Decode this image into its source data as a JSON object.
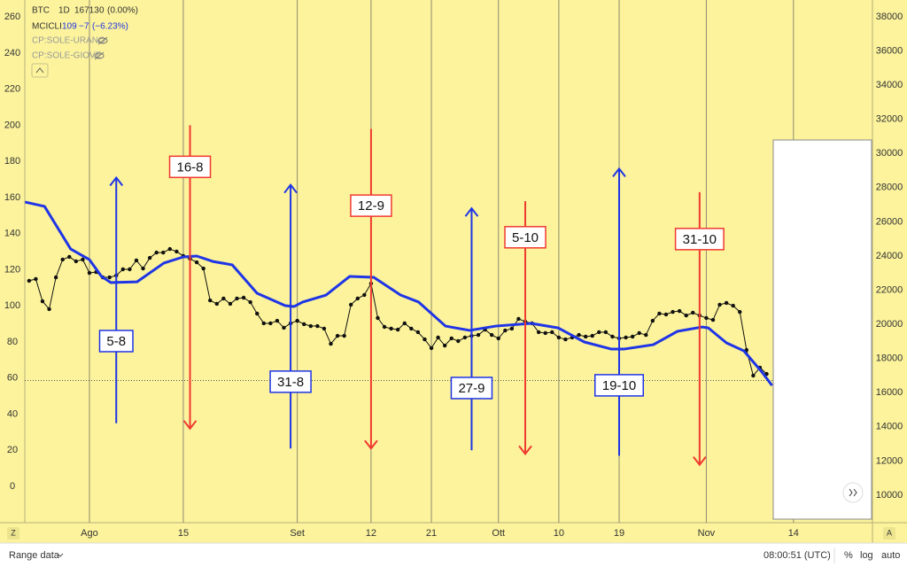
{
  "legend": {
    "interval": "1D",
    "btc_change": "0",
    "btc_pct": "(0.00%)",
    "mc_value": "109",
    "mc_change": "−7",
    "mc_pct": "(−6.23%)",
    "study1": "CP:SOLE-URANO",
    "study2": "CP:SOLE-GIOVE"
  },
  "toolbar": {
    "range": "Range data",
    "time": "08:00:51 (UTC)",
    "percent": "%",
    "log": "log",
    "auto": "auto",
    "left_btn": "Z",
    "right_btn": "A"
  },
  "chart_data": {
    "type": "line",
    "last_price": 16713,
    "xlim": [
      -9.64,
      116.78
    ],
    "xticks": [
      {
        "value": 0,
        "label": "Ago"
      },
      {
        "value": 14,
        "label": "15"
      },
      {
        "value": 31,
        "label": "Set"
      },
      {
        "value": 42,
        "label": "12"
      },
      {
        "value": 51,
        "label": "21"
      },
      {
        "value": 61,
        "label": "Ott"
      },
      {
        "value": 70,
        "label": "10"
      },
      {
        "value": 79,
        "label": "19"
      },
      {
        "value": 92,
        "label": "Nov"
      },
      {
        "value": 105,
        "label": "14"
      }
    ],
    "ylim": [
      -20.1,
      269.4
    ],
    "yticks": [
      0,
      20,
      40,
      60,
      80,
      100,
      120,
      140,
      160,
      180,
      200,
      220,
      240,
      260
    ],
    "y2lim": [
      8393,
      38979
    ],
    "y2ticks": [
      10000,
      12000,
      14000,
      16000,
      18000,
      20000,
      22000,
      24000,
      26000,
      28000,
      30000,
      32000,
      34000,
      36000,
      38000
    ],
    "series": [
      {
        "name": "BTC",
        "color": "#111111",
        "axis": "y2",
        "markers": true,
        "x": [
          -9,
          -8,
          -7,
          -6,
          -5,
          -4,
          -3,
          -2,
          -1,
          0,
          1,
          2,
          3,
          4,
          5,
          6,
          7,
          8,
          9,
          10,
          11,
          12,
          13,
          14,
          15,
          16,
          17,
          18,
          19,
          20,
          21,
          22,
          23,
          24,
          25,
          26,
          27,
          28,
          29,
          30,
          31,
          32,
          33,
          34,
          35,
          36,
          37,
          38,
          39,
          40,
          41,
          42,
          43,
          44,
          45,
          46,
          47,
          48,
          49,
          50,
          51,
          52,
          53,
          54,
          55,
          56,
          57,
          58,
          59,
          60,
          61,
          62,
          63,
          64,
          65,
          66,
          67,
          68,
          69,
          70,
          71,
          72,
          73,
          74,
          75,
          76,
          77,
          78,
          79,
          80,
          81,
          82,
          83,
          84,
          85,
          86,
          87,
          88,
          89,
          90,
          91,
          92,
          93,
          94,
          95,
          96,
          97,
          98,
          99,
          100,
          101
        ],
        "values": [
          22550,
          22650,
          21350,
          20890,
          22750,
          23790,
          23950,
          23690,
          23790,
          23010,
          23060,
          22750,
          22750,
          22860,
          23220,
          23220,
          23740,
          23270,
          23890,
          24200,
          24200,
          24410,
          24260,
          24000,
          23840,
          23630,
          23270,
          21400,
          21200,
          21510,
          21200,
          21510,
          21560,
          21300,
          20630,
          20060,
          20060,
          20210,
          19800,
          20060,
          20210,
          20010,
          19900,
          19900,
          19750,
          18860,
          19330,
          19330,
          21150,
          21510,
          21720,
          22390,
          20370,
          19850,
          19750,
          19690,
          20060,
          19750,
          19540,
          19120,
          18610,
          19230,
          18760,
          19180,
          19020,
          19230,
          19330,
          19380,
          19690,
          19380,
          19180,
          19640,
          19750,
          20320,
          20160,
          20060,
          19540,
          19490,
          19540,
          19230,
          19120,
          19230,
          19380,
          19280,
          19330,
          19540,
          19540,
          19280,
          19180,
          19230,
          19280,
          19490,
          19380,
          20210,
          20630,
          20580,
          20730,
          20780,
          20520,
          20680,
          20520,
          20370,
          20260,
          21150,
          21250,
          21090,
          20730,
          18500,
          17000,
          17470,
          17100
        ]
      },
      {
        "name": "MCICLI",
        "color": "#1f35e6",
        "axis": "y",
        "markers": false,
        "x": [
          -9.6,
          -6.7,
          -2.8,
          0,
          1.8,
          3.2,
          7.1,
          11.1,
          14,
          16,
          18.4,
          21.3,
          25,
          29.2,
          30.5,
          31.8,
          35.3,
          38.8,
          42.4,
          46.4,
          49.1,
          53.1,
          56.7,
          60.6,
          65.9,
          69.9,
          73.8,
          77.8,
          79.8,
          84.1,
          87.7,
          91.4,
          92.3,
          95,
          97.6,
          100.3,
          101.8
        ],
        "values": [
          157.5,
          155.1,
          131.5,
          125.6,
          116.3,
          112.9,
          113.3,
          123.7,
          127.1,
          127.6,
          124.6,
          122.7,
          107.0,
          100.1,
          99.6,
          102.1,
          106.0,
          116.3,
          115.8,
          106.0,
          102.1,
          88.8,
          86.4,
          88.8,
          90.3,
          87.8,
          80.0,
          76.1,
          76.1,
          78.5,
          85.9,
          88.3,
          87.8,
          79.5,
          75.1,
          63.3,
          55.9
        ]
      }
    ],
    "annotations": [
      {
        "text": "5-8",
        "color": "#1f35e6",
        "x": 4,
        "y": [
          35,
          171
        ],
        "label_y": 80.5
      },
      {
        "text": "16-8",
        "color": "#f03a30",
        "x": 15,
        "y": [
          200,
          32
        ],
        "label_y": 177
      },
      {
        "text": "31-8",
        "color": "#1f35e6",
        "x": 30,
        "y": [
          21,
          167
        ],
        "label_y": 58
      },
      {
        "text": "12-9",
        "color": "#f03a30",
        "x": 42,
        "y": [
          198,
          21
        ],
        "label_y": 155.5
      },
      {
        "text": "27-9",
        "color": "#1f35e6",
        "x": 57,
        "y": [
          20,
          154
        ],
        "label_y": 54.5
      },
      {
        "text": "5-10",
        "color": "#f03a30",
        "x": 65,
        "y": [
          158,
          18
        ],
        "label_y": 138
      },
      {
        "text": "19-10",
        "color": "#1f35e6",
        "x": 79,
        "y": [
          17,
          176
        ],
        "label_y": 56
      },
      {
        "text": "31-10",
        "color": "#f03a30",
        "x": 91,
        "y": [
          163,
          12
        ],
        "label_y": 137
      }
    ]
  }
}
